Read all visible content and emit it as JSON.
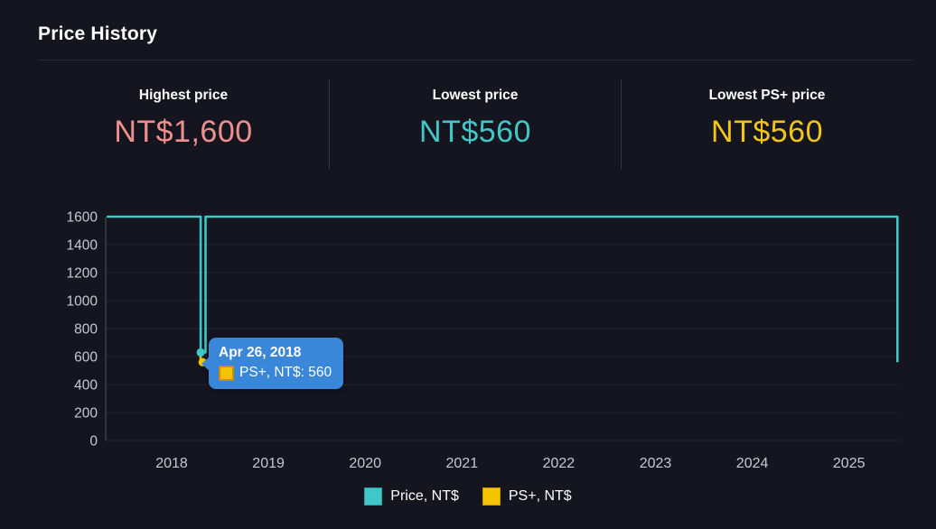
{
  "page": {
    "title": "Price History"
  },
  "stats": [
    {
      "label": "Highest price",
      "value": "NT$1,600",
      "color": "#f0908e"
    },
    {
      "label": "Lowest price",
      "value": "NT$560",
      "color": "#41c7c7"
    },
    {
      "label": "Lowest PS+ price",
      "value": "NT$560",
      "color": "#f0c419"
    }
  ],
  "chart_data": {
    "type": "line",
    "title": "Price History",
    "xlabel": "",
    "ylabel": "",
    "grid": "horizontal",
    "x_ticks": [
      2018,
      2019,
      2020,
      2021,
      2022,
      2023,
      2024,
      2025
    ],
    "y_ticks": [
      0,
      200,
      400,
      600,
      800,
      1000,
      1200,
      1400,
      1600
    ],
    "ylim": [
      0,
      1600
    ],
    "xlim": [
      2017.33,
      2025.55
    ],
    "legend_position": "bottom",
    "series": [
      {
        "name": "Price, NT$",
        "color": "#3fc6c6",
        "points": [
          [
            2017.33,
            1600
          ],
          [
            2018.3,
            1600
          ],
          [
            2018.3,
            630
          ],
          [
            2018.35,
            630
          ],
          [
            2018.35,
            1600
          ],
          [
            2025.5,
            1600
          ],
          [
            2025.5,
            560
          ]
        ]
      },
      {
        "name": "PS+, NT$",
        "color": "#f5c400",
        "points": [
          [
            2018.295,
            645
          ],
          [
            2018.3,
            578
          ],
          [
            2018.325,
            560
          ]
        ]
      }
    ],
    "markers": [
      {
        "series": "Price, NT$",
        "x": 2018.3,
        "value": 630,
        "color": "#3fc6c6"
      },
      {
        "series": "PS+, NT$",
        "x": 2018.32,
        "value": 560,
        "color": "#f5c400"
      }
    ],
    "annotations": [
      {
        "date": "Apr 26, 2018",
        "series": "PS+, NT$",
        "value": 560
      }
    ]
  },
  "tooltip": {
    "date": "Apr 26, 2018",
    "label": "PS+, NT$: 560",
    "color": "#f5c400",
    "bg": "#3a86d8"
  },
  "legend": [
    {
      "label": "Price, NT$",
      "color": "#41c7c7"
    },
    {
      "label": "PS+, NT$",
      "color": "#f5c400"
    }
  ]
}
